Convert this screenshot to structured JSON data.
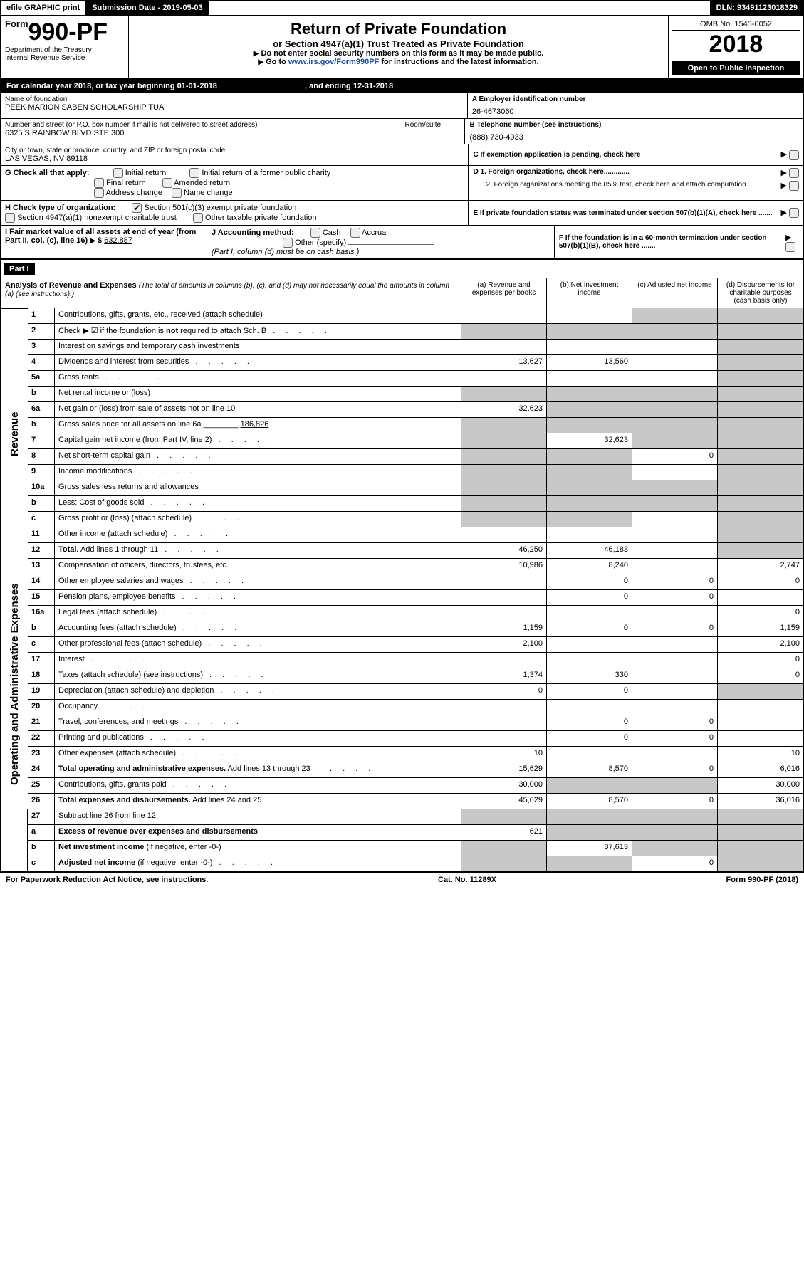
{
  "topbar": {
    "efile": "efile GRAPHIC print",
    "submission": "Submission Date - 2019-05-03",
    "dln": "DLN: 93491123018329"
  },
  "header": {
    "form_prefix": "Form",
    "form_number": "990-PF",
    "dept": "Department of the Treasury",
    "irs": "Internal Revenue Service",
    "title": "Return of Private Foundation",
    "subtitle": "or Section 4947(a)(1) Trust Treated as Private Foundation",
    "note1": "Do not enter social security numbers on this form as it may be made public.",
    "note2_pre": "Go to ",
    "note2_link": "www.irs.gov/Form990PF",
    "note2_post": " for instructions and the latest information.",
    "omb": "OMB No. 1545-0052",
    "year": "2018",
    "open": "Open to Public Inspection"
  },
  "cal": {
    "text_pre": "For calendar year 2018, or tax year beginning ",
    "begin": "01-01-2018",
    "mid": ", and ending ",
    "end": "12-31-2018"
  },
  "info": {
    "name_lbl": "Name of foundation",
    "name": "PEEK MARION SABEN SCHOLARSHIP TUA",
    "ein_lbl": "A Employer identification number",
    "ein": "26-4673060",
    "addr_lbl": "Number and street (or P.O. box number if mail is not delivered to street address)",
    "room_lbl": "Room/suite",
    "addr": "6325 S RAINBOW BLVD STE 300",
    "tel_lbl": "B Telephone number (see instructions)",
    "tel": "(888) 730-4933",
    "city_lbl": "City or town, state or province, country, and ZIP or foreign postal code",
    "city": "LAS VEGAS, NV  89118",
    "c_lbl": "C If exemption application is pending, check here",
    "g_lbl": "G Check all that apply:",
    "g_opts": [
      "Initial return",
      "Initial return of a former public charity",
      "Final return",
      "Amended return",
      "Address change",
      "Name change"
    ],
    "d1": "D 1. Foreign organizations, check here.............",
    "d2": "2. Foreign organizations meeting the 85% test, check here and attach computation ...",
    "e_lbl": "E  If private foundation status was terminated under section 507(b)(1)(A), check here .......",
    "h_lbl": "H Check type of organization:",
    "h1": "Section 501(c)(3) exempt private foundation",
    "h2": "Section 4947(a)(1) nonexempt charitable trust",
    "h3": "Other taxable private foundation",
    "f_lbl": "F  If the foundation is in a 60-month termination under section 507(b)(1)(B), check here .......",
    "i_lbl": "I Fair market value of all assets at end of year (from Part II, col. (c), line 16)",
    "i_val": "632,887",
    "j_lbl": "J Accounting method:",
    "j_cash": "Cash",
    "j_accrual": "Accrual",
    "j_other": "Other (specify)",
    "j_note": "(Part I, column (d) must be on cash basis.)"
  },
  "part1": {
    "label": "Part I",
    "title": "Analysis of Revenue and Expenses",
    "title_note": "(The total of amounts in columns (b), (c), and (d) may not necessarily equal the amounts in column (a) (see instructions).)",
    "cols": {
      "a": "(a)   Revenue and expenses per books",
      "b": "(b)  Net investment income",
      "c": "(c)  Adjusted net income",
      "d": "(d)  Disbursements for charitable purposes (cash basis only)"
    },
    "rev_label": "Revenue",
    "exp_label": "Operating and Administrative Expenses",
    "rows": [
      {
        "n": "1",
        "t": "Contributions, gifts, grants, etc., received (attach schedule)",
        "a": "",
        "b": "",
        "c": "s",
        "d": "s"
      },
      {
        "n": "2",
        "t": "Check ▶ ☑ if the foundation is <b>not</b> required to attach Sch. B",
        "a": "s",
        "b": "s",
        "c": "s",
        "d": "s",
        "dots": true
      },
      {
        "n": "3",
        "t": "Interest on savings and temporary cash investments",
        "a": "",
        "b": "",
        "c": "",
        "d": "s"
      },
      {
        "n": "4",
        "t": "Dividends and interest from securities",
        "a": "13,627",
        "b": "13,560",
        "c": "",
        "d": "s",
        "dots": true
      },
      {
        "n": "5a",
        "t": "Gross rents",
        "a": "",
        "b": "",
        "c": "",
        "d": "s",
        "dots": true
      },
      {
        "n": "b",
        "t": "Net rental income or (loss)",
        "a": "s",
        "b": "s",
        "c": "s",
        "d": "s"
      },
      {
        "n": "6a",
        "t": "Net gain or (loss) from sale of assets not on line 10",
        "a": "32,623",
        "b": "s",
        "c": "s",
        "d": "s"
      },
      {
        "n": "b",
        "t": "Gross sales price for all assets on line 6a ________ <u>186,826</u>",
        "a": "s",
        "b": "s",
        "c": "s",
        "d": "s"
      },
      {
        "n": "7",
        "t": "Capital gain net income (from Part IV, line 2)",
        "a": "s",
        "b": "32,623",
        "c": "s",
        "d": "s",
        "dots": true
      },
      {
        "n": "8",
        "t": "Net short-term capital gain",
        "a": "s",
        "b": "s",
        "c": "0",
        "d": "s",
        "dots": true
      },
      {
        "n": "9",
        "t": "Income modifications",
        "a": "s",
        "b": "s",
        "c": "",
        "d": "s",
        "dots": true
      },
      {
        "n": "10a",
        "t": "Gross sales less returns and allowances",
        "a": "s",
        "b": "s",
        "c": "s",
        "d": "s",
        "box": true
      },
      {
        "n": "b",
        "t": "Less: Cost of goods sold",
        "a": "s",
        "b": "s",
        "c": "s",
        "d": "s",
        "box": true,
        "dots": true
      },
      {
        "n": "c",
        "t": "Gross profit or (loss) (attach schedule)",
        "a": "s",
        "b": "s",
        "c": "",
        "d": "s",
        "dots": true
      },
      {
        "n": "11",
        "t": "Other income (attach schedule)",
        "a": "",
        "b": "",
        "c": "",
        "d": "s",
        "dots": true
      },
      {
        "n": "12",
        "t": "<b>Total.</b> Add lines 1 through 11",
        "a": "46,250",
        "b": "46,183",
        "c": "",
        "d": "s",
        "dots": true
      }
    ],
    "exp_rows": [
      {
        "n": "13",
        "t": "Compensation of officers, directors, trustees, etc.",
        "a": "10,986",
        "b": "8,240",
        "c": "",
        "d": "2,747"
      },
      {
        "n": "14",
        "t": "Other employee salaries and wages",
        "a": "",
        "b": "0",
        "c": "0",
        "d": "0",
        "dots": true
      },
      {
        "n": "15",
        "t": "Pension plans, employee benefits",
        "a": "",
        "b": "0",
        "c": "0",
        "d": "",
        "dots": true
      },
      {
        "n": "16a",
        "t": "Legal fees (attach schedule)",
        "a": "",
        "b": "",
        "c": "",
        "d": "0",
        "dots": true
      },
      {
        "n": "b",
        "t": "Accounting fees (attach schedule)",
        "a": "1,159",
        "b": "0",
        "c": "0",
        "d": "1,159",
        "dots": true
      },
      {
        "n": "c",
        "t": "Other professional fees (attach schedule)",
        "a": "2,100",
        "b": "",
        "c": "",
        "d": "2,100",
        "dots": true
      },
      {
        "n": "17",
        "t": "Interest",
        "a": "",
        "b": "",
        "c": "",
        "d": "0",
        "dots": true
      },
      {
        "n": "18",
        "t": "Taxes (attach schedule) (see instructions)",
        "a": "1,374",
        "b": "330",
        "c": "",
        "d": "0",
        "dots": true
      },
      {
        "n": "19",
        "t": "Depreciation (attach schedule) and depletion",
        "a": "0",
        "b": "0",
        "c": "",
        "d": "s",
        "dots": true
      },
      {
        "n": "20",
        "t": "Occupancy",
        "a": "",
        "b": "",
        "c": "",
        "d": "",
        "dots": true
      },
      {
        "n": "21",
        "t": "Travel, conferences, and meetings",
        "a": "",
        "b": "0",
        "c": "0",
        "d": "",
        "dots": true
      },
      {
        "n": "22",
        "t": "Printing and publications",
        "a": "",
        "b": "0",
        "c": "0",
        "d": "",
        "dots": true
      },
      {
        "n": "23",
        "t": "Other expenses (attach schedule)",
        "a": "10",
        "b": "",
        "c": "",
        "d": "10",
        "dots": true
      },
      {
        "n": "24",
        "t": "<b>Total operating and administrative expenses.</b> Add lines 13 through 23",
        "a": "15,629",
        "b": "8,570",
        "c": "0",
        "d": "6,016",
        "dots": true
      },
      {
        "n": "25",
        "t": "Contributions, gifts, grants paid",
        "a": "30,000",
        "b": "s",
        "c": "s",
        "d": "30,000",
        "dots": true
      },
      {
        "n": "26",
        "t": "<b>Total expenses and disbursements.</b> Add lines 24 and 25",
        "a": "45,629",
        "b": "8,570",
        "c": "0",
        "d": "36,016"
      }
    ],
    "sub_rows": [
      {
        "n": "27",
        "t": "Subtract line 26 from line 12:",
        "a": "s",
        "b": "s",
        "c": "s",
        "d": "s"
      },
      {
        "n": "a",
        "t": "<b>Excess of revenue over expenses and disbursements</b>",
        "a": "621",
        "b": "s",
        "c": "s",
        "d": "s"
      },
      {
        "n": "b",
        "t": "<b>Net investment income</b> (if negative, enter -0-)",
        "a": "s",
        "b": "37,613",
        "c": "s",
        "d": "s"
      },
      {
        "n": "c",
        "t": "<b>Adjusted net income</b> (if negative, enter -0-)",
        "a": "s",
        "b": "s",
        "c": "0",
        "d": "s",
        "dots": true
      }
    ]
  },
  "footer": {
    "left": "For Paperwork Reduction Act Notice, see instructions.",
    "mid": "Cat. No. 11289X",
    "right": "Form 990-PF (2018)"
  }
}
